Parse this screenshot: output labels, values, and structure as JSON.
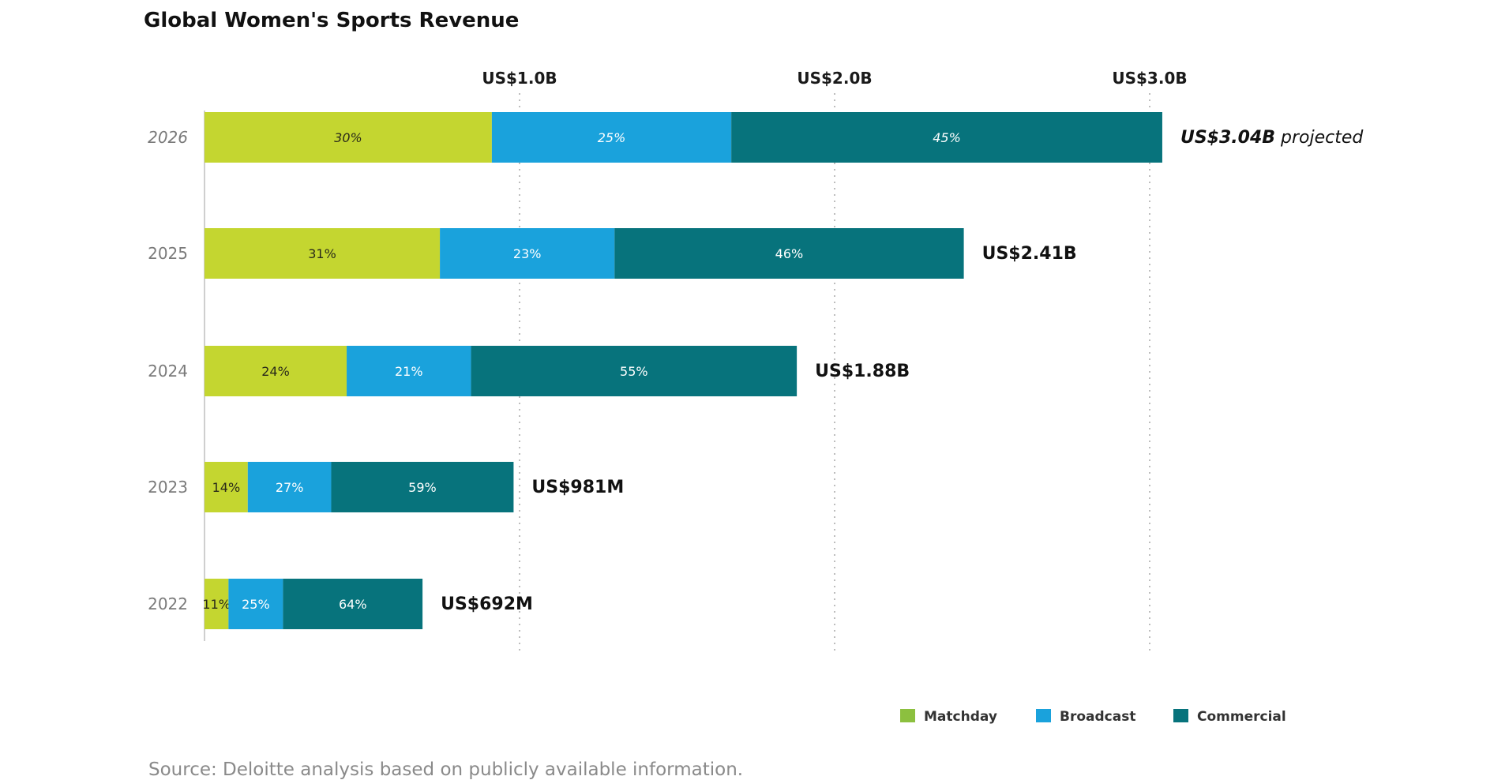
{
  "chart_data": {
    "type": "bar",
    "orientation": "horizontal",
    "stacked": true,
    "title": "Global Women's Sports Revenue",
    "xlabel": "",
    "ylabel": "",
    "unit": "US$ billions",
    "xlim": [
      0,
      3.0
    ],
    "x_ticks": [
      1.0,
      2.0,
      3.0
    ],
    "x_tick_labels": [
      "US$1.0B",
      "US$2.0B",
      "US$3.0B"
    ],
    "x_ticks_position": "top",
    "grid": "vertical dotted",
    "categories": [
      "2026",
      "2025",
      "2024",
      "2023",
      "2022"
    ],
    "projected_categories": [
      "2026"
    ],
    "totals": [
      3.04,
      2.41,
      1.88,
      0.981,
      0.692
    ],
    "total_labels": [
      {
        "main": "US$3.04B",
        "suffix": " projected"
      },
      {
        "main": "US$2.41B",
        "suffix": ""
      },
      {
        "main": "US$1.88B",
        "suffix": ""
      },
      {
        "main": "US$981M",
        "suffix": ""
      },
      {
        "main": "US$692M",
        "suffix": ""
      }
    ],
    "series": [
      {
        "name": "Matchday",
        "color": "#c4d630",
        "legend_color": "#8cc03f",
        "share_percent": [
          30,
          31,
          24,
          14,
          11
        ]
      },
      {
        "name": "Broadcast",
        "color": "#1aa2dc",
        "legend_color": "#1aa2dc",
        "share_percent": [
          25,
          23,
          21,
          27,
          25
        ]
      },
      {
        "name": "Commercial",
        "color": "#07737c",
        "legend_color": "#07737c",
        "share_percent": [
          45,
          46,
          55,
          59,
          64
        ]
      }
    ],
    "legend_position": "bottom-right",
    "source": "Source: Deloitte analysis based on publicly available information."
  }
}
